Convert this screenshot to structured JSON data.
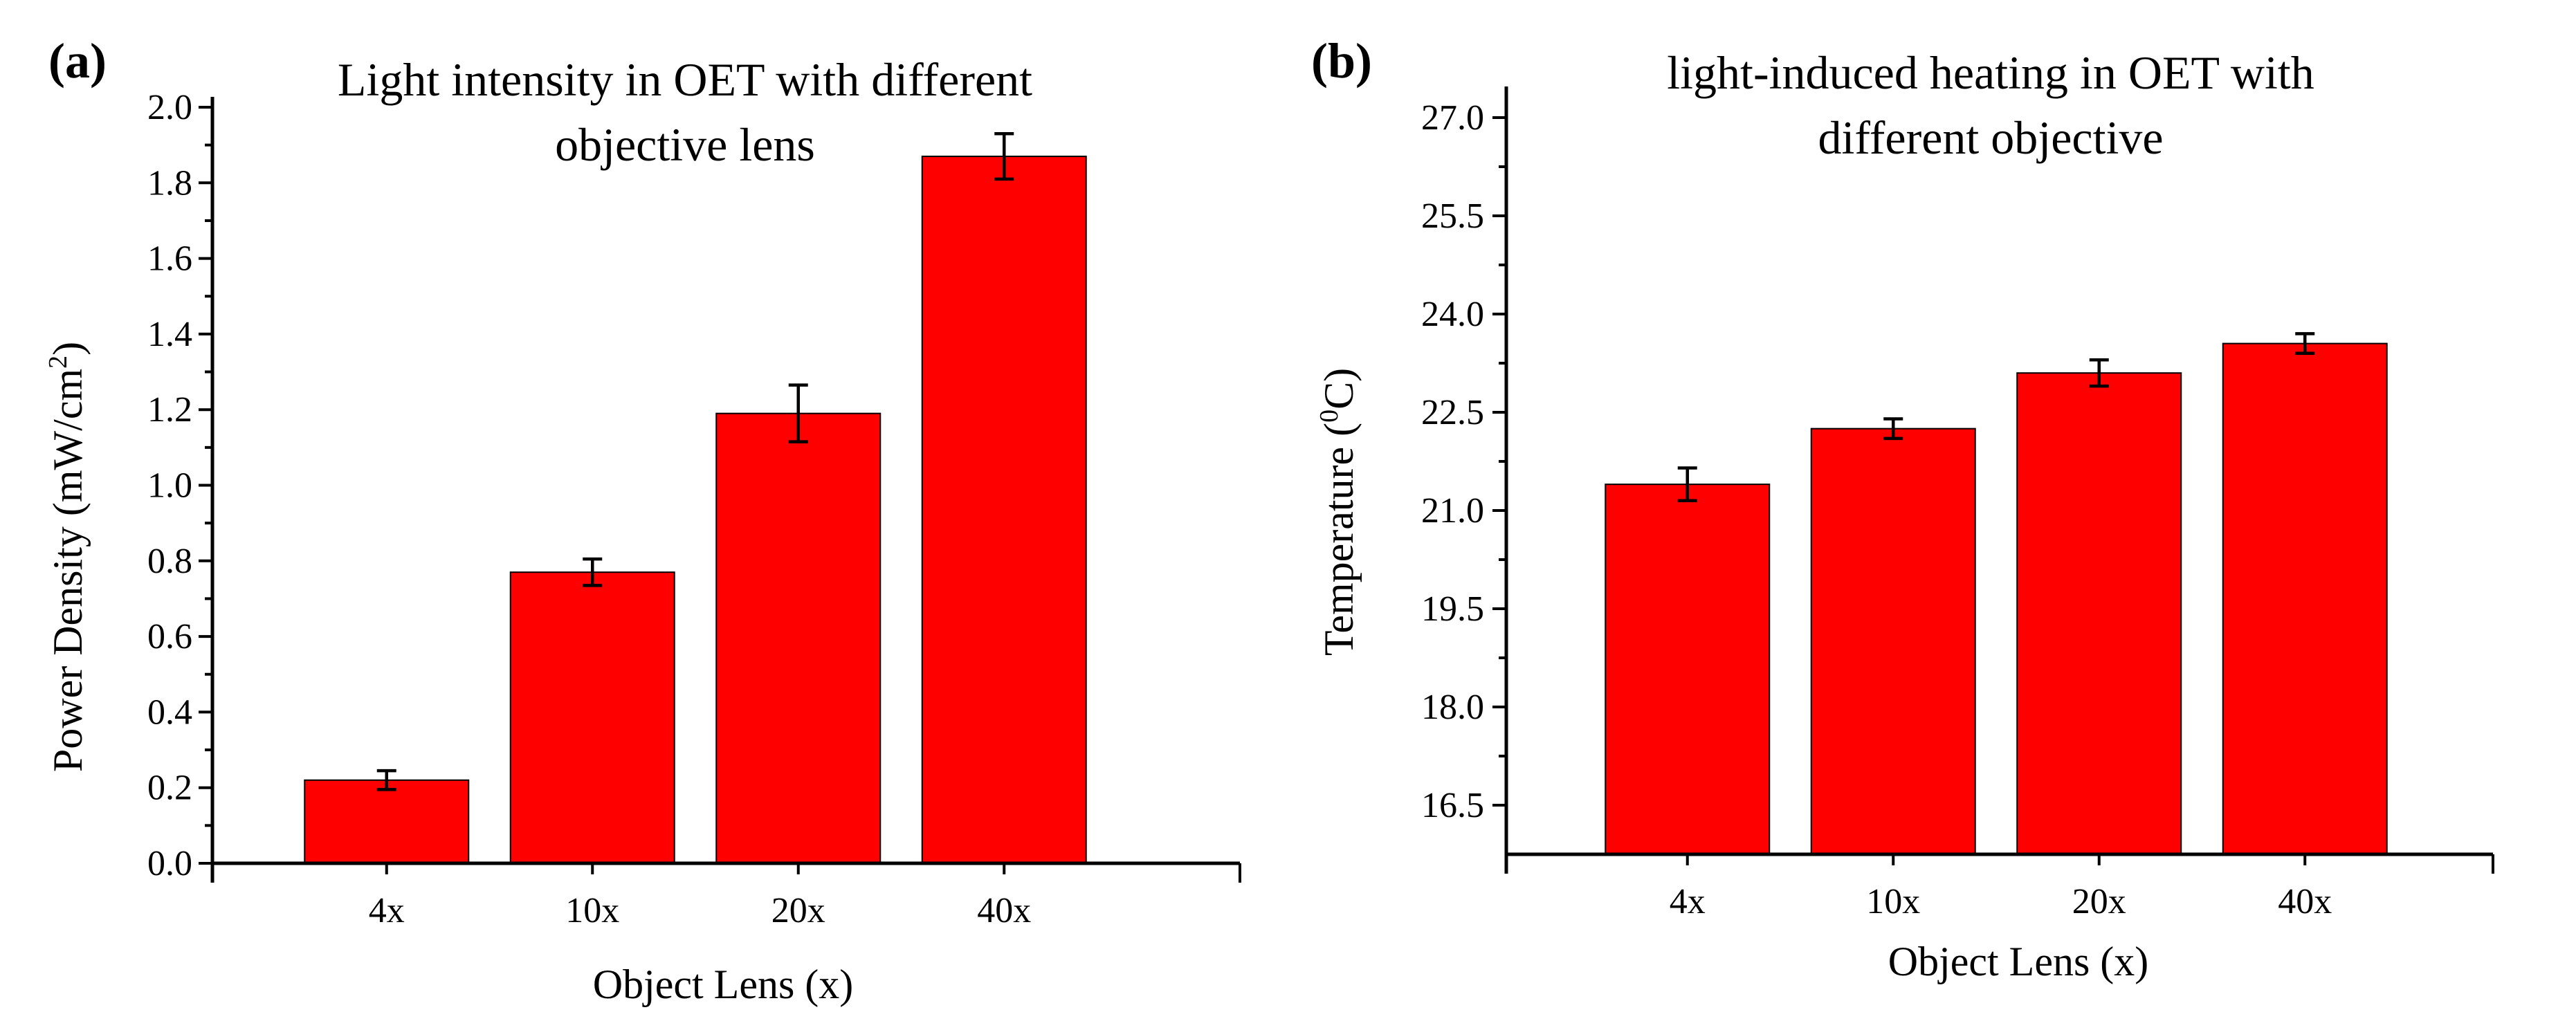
{
  "colors": {
    "bar": "#ff0000",
    "axis": "#000000",
    "text": "#000000"
  },
  "chart_data": [
    {
      "type": "bar",
      "panel_label": "(a)",
      "title": [
        "Light intensity in OET with different",
        "objective lens"
      ],
      "xlabel": "Object Lens (x)",
      "ylabel": "Power Density (mW/cm",
      "ylabel_sup": "2",
      "ylabel_tail": ")",
      "categories": [
        "4x",
        "10x",
        "20x",
        "40x"
      ],
      "values": [
        0.22,
        0.77,
        1.19,
        1.87
      ],
      "errors": [
        0.025,
        0.035,
        0.075,
        0.06
      ],
      "ylim": [
        0.0,
        2.0
      ],
      "ymax_axis": 2.1,
      "yticks": [
        0.0,
        0.2,
        0.4,
        0.6,
        0.8,
        1.0,
        1.2,
        1.4,
        1.6,
        1.8,
        2.0
      ],
      "ytick_labels": [
        "0.0",
        "0.2",
        "0.4",
        "0.6",
        "0.8",
        "1.0",
        "1.2",
        "1.4",
        "1.6",
        "1.8",
        "2.0"
      ],
      "grid": false,
      "legend": "none"
    },
    {
      "type": "bar",
      "panel_label": "(b)",
      "title": [
        "light-induced heating in OET with",
        "different objective"
      ],
      "xlabel": "Object Lens (x)",
      "ylabel": "Temperature (",
      "ylabel_sup": "0",
      "ylabel_tail": "C)",
      "categories": [
        "4x",
        "10x",
        "20x",
        "40x"
      ],
      "values": [
        21.4,
        22.25,
        23.1,
        23.55
      ],
      "errors": [
        0.25,
        0.15,
        0.2,
        0.15
      ],
      "ylim": [
        15.75,
        27.0
      ],
      "ymax_axis": 27.5,
      "yticks": [
        16.5,
        18.0,
        19.5,
        21.0,
        22.5,
        24.0,
        25.5,
        27.0
      ],
      "ytick_labels": [
        "16.5",
        "18.0",
        "19.5",
        "21.0",
        "22.5",
        "24.0",
        "25.5",
        "27.0"
      ],
      "grid": false,
      "legend": "none"
    }
  ]
}
